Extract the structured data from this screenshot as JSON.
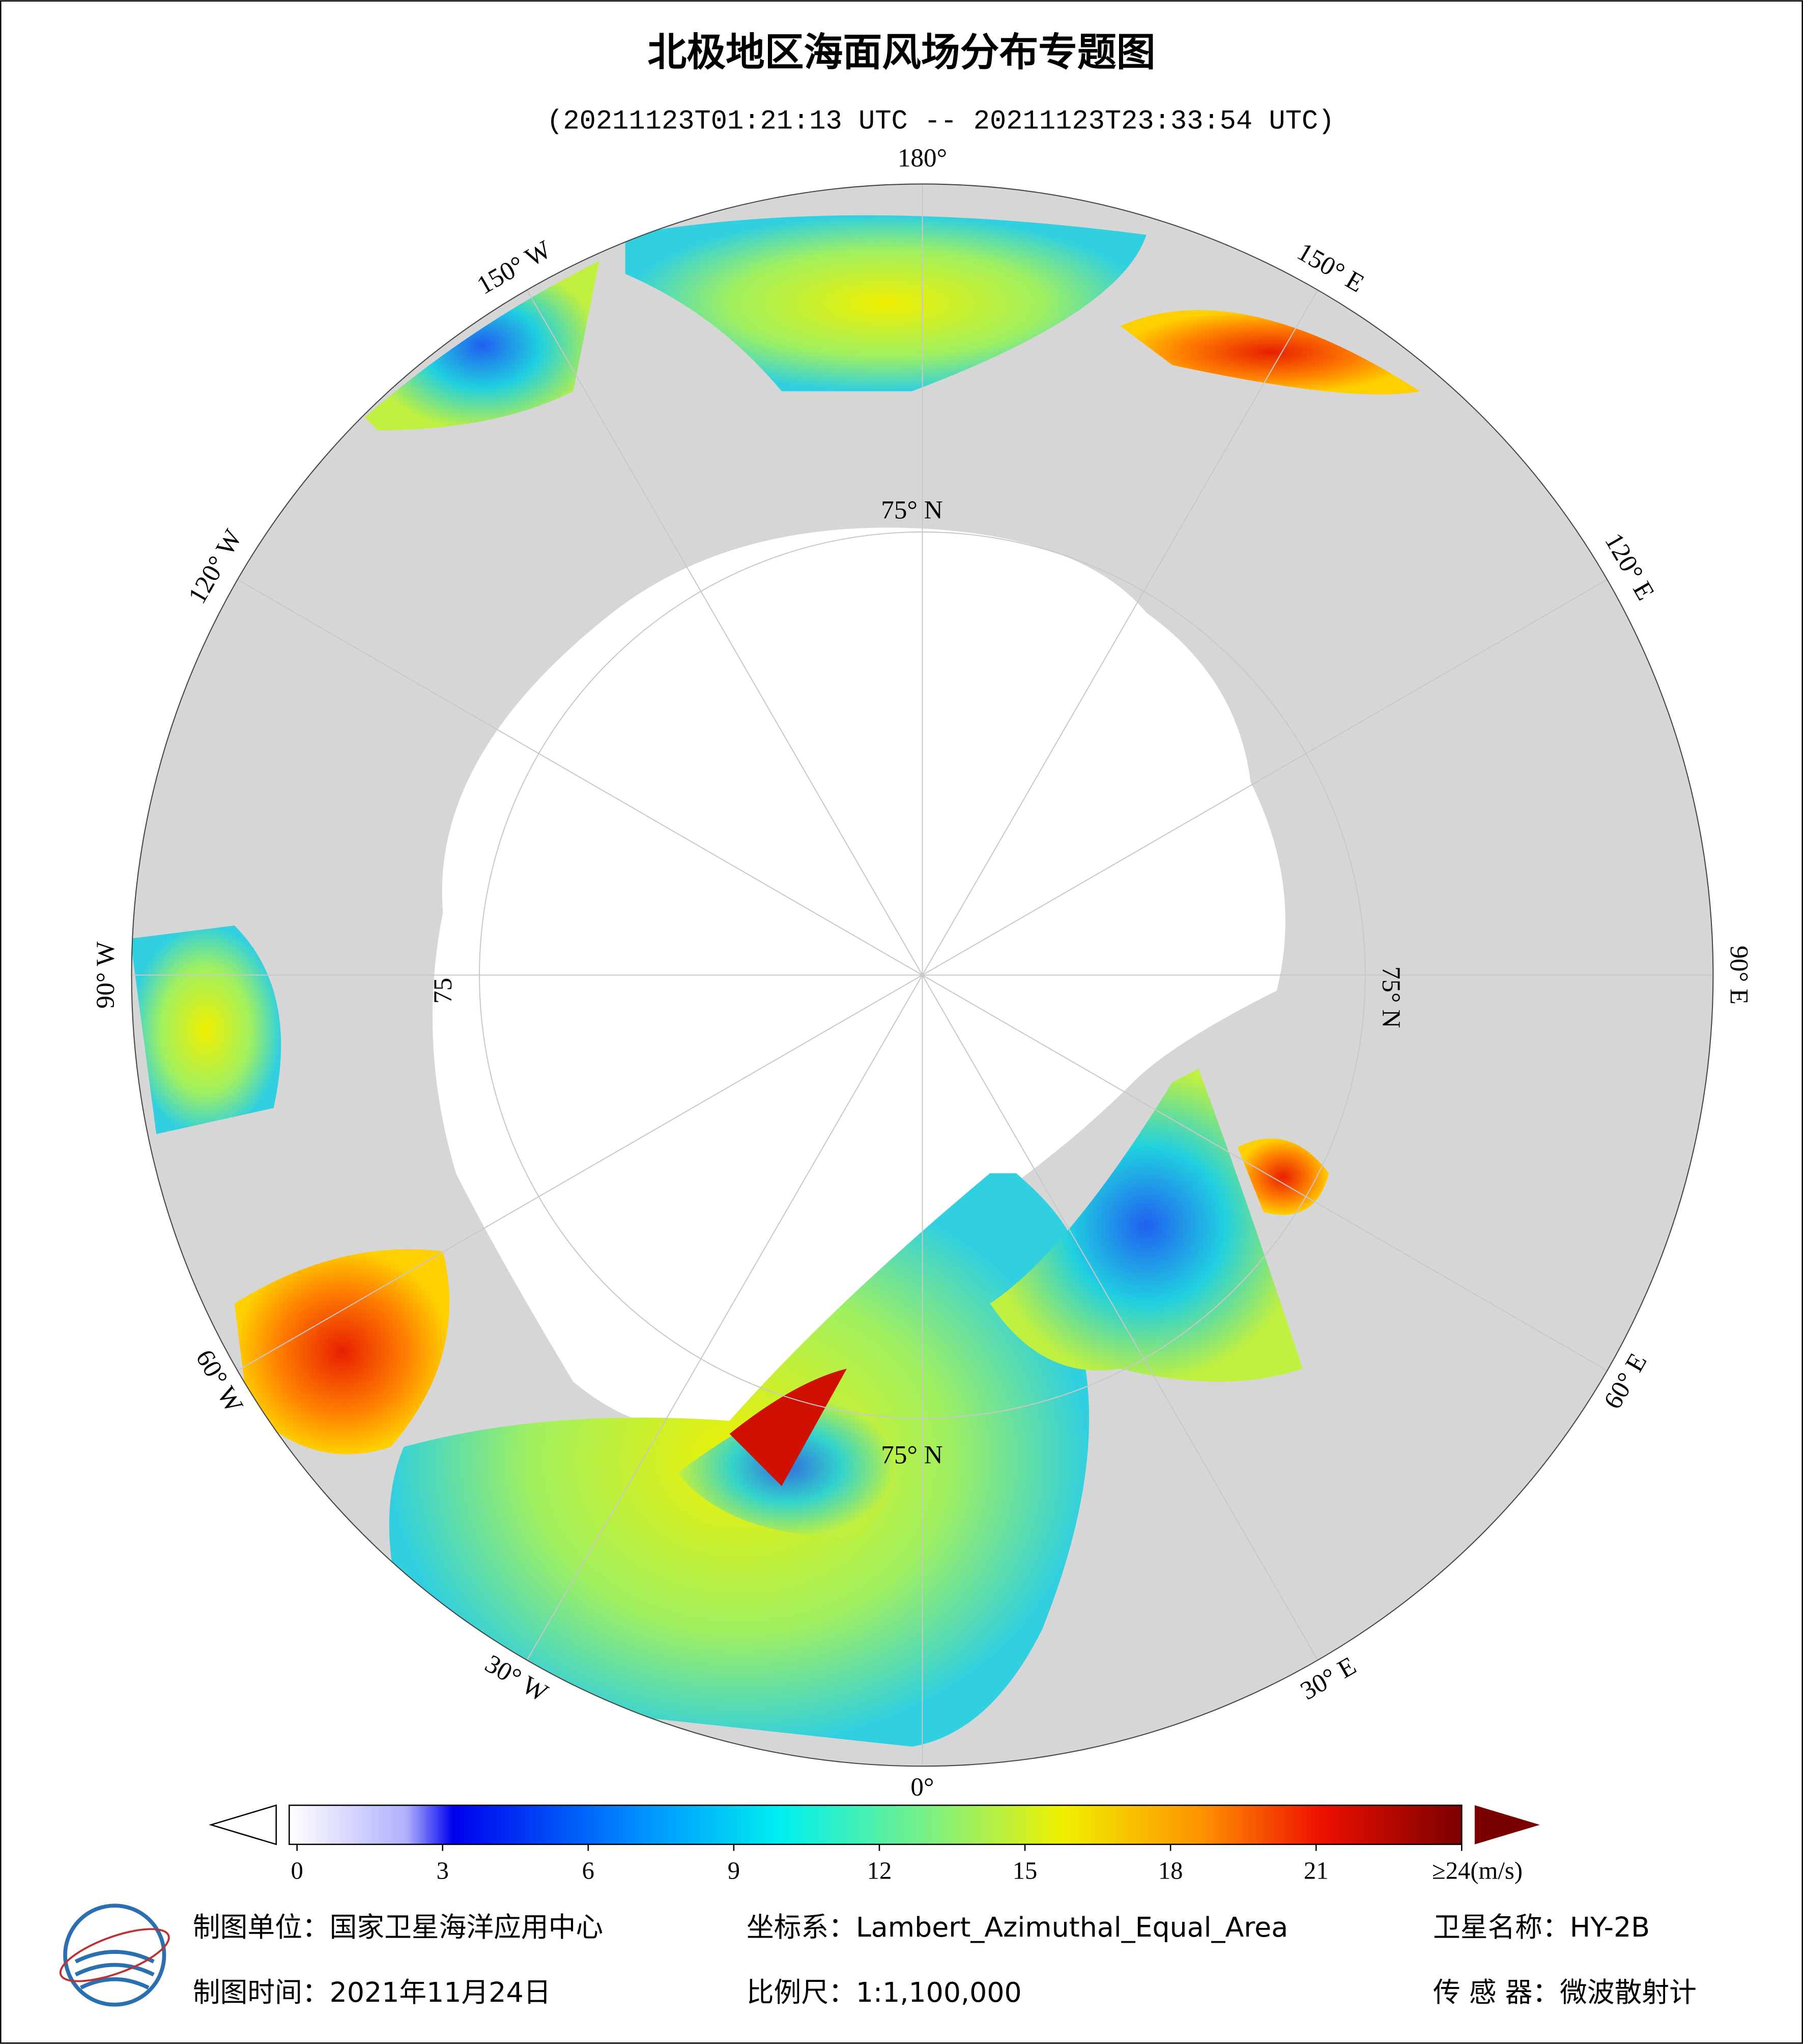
{
  "header": {
    "title": "北极地区海面风场分布专题图",
    "subtitle": "(20211123T01:21:13 UTC -- 20211123T23:33:54 UTC)"
  },
  "map": {
    "longitude_labels": [
      "180°",
      "150° E",
      "120° E",
      "90° E",
      "60° E",
      "30° E",
      "0°",
      "30° W",
      "60° W",
      "90° W",
      "120° W",
      "150° W"
    ],
    "latitude_labels": [
      "75° N",
      "75° N",
      "75° N",
      "75"
    ]
  },
  "colorbar": {
    "lim": [
      0,
      24
    ],
    "ticks": [
      0,
      3,
      6,
      9,
      12,
      15,
      18,
      21,
      {
        "value": 24,
        "label": "≥24(m/s)"
      }
    ]
  },
  "footer": {
    "unit": "制图单位：国家卫星海洋应用中心",
    "projection": "坐标系：Lambert_Azimuthal_Equal_Area",
    "satellite": "卫星名称：HY-2B",
    "date": "制图时间：2021年11月24日",
    "scale": "比例尺：1:1,100,000",
    "sensor": "传 感 器：微波散射计"
  }
}
